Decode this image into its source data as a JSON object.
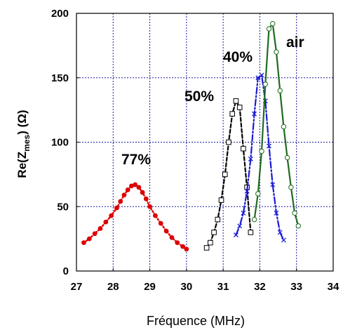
{
  "chart_data": {
    "type": "line",
    "xlabel": "Fréquence (MHz)",
    "ylabel": {
      "main": "Re(Z",
      "sub": "mes",
      "tail": ") (Ω)"
    },
    "xlim": [
      27,
      34
    ],
    "ylim": [
      0,
      200
    ],
    "xticks": [
      "27",
      "28",
      "29",
      "30",
      "31",
      "32",
      "33",
      "34"
    ],
    "yticks": [
      "0",
      "50",
      "100",
      "150",
      "200"
    ],
    "grid": true,
    "legend": "none",
    "series": [
      {
        "name": "77%",
        "color": "#dd0000",
        "line": "dotted",
        "marker": "dot",
        "x": [
          27.2,
          27.35,
          27.5,
          27.65,
          27.8,
          27.95,
          28.1,
          28.2,
          28.3,
          28.4,
          28.5,
          28.6,
          28.7,
          28.8,
          28.9,
          29.0,
          29.15,
          29.3,
          29.45,
          29.6,
          29.75,
          29.9,
          30.0
        ],
        "y": [
          22,
          25,
          29,
          33,
          38,
          43,
          49,
          54,
          59,
          63,
          66,
          67,
          65,
          61,
          56,
          50,
          43,
          37,
          31,
          26,
          22,
          19,
          17
        ]
      },
      {
        "name": "50%",
        "color": "#000000",
        "line": "dashed",
        "marker": "square",
        "x": [
          30.55,
          30.65,
          30.75,
          30.85,
          30.95,
          31.05,
          31.15,
          31.25,
          31.35,
          31.45,
          31.55,
          31.65,
          31.75
        ],
        "y": [
          18,
          22,
          30,
          40,
          55,
          75,
          100,
          122,
          132,
          127,
          95,
          65,
          30
        ]
      },
      {
        "name": "40%",
        "color": "#1a1ad6",
        "line": "dashdot",
        "marker": "cross",
        "x": [
          31.35,
          31.45,
          31.55,
          31.65,
          31.75,
          31.85,
          31.95,
          32.05,
          32.15,
          32.25,
          32.35,
          32.45,
          32.55,
          32.65
        ],
        "y": [
          28,
          35,
          45,
          62,
          87,
          122,
          150,
          152,
          132,
          97,
          67,
          45,
          30,
          24
        ]
      },
      {
        "name": "air",
        "color": "#1e6b1e",
        "line": "solid",
        "marker": "circle",
        "x": [
          31.85,
          31.95,
          32.05,
          32.15,
          32.25,
          32.35,
          32.45,
          32.55,
          32.65,
          32.75,
          32.85,
          32.95,
          33.05
        ],
        "y": [
          40,
          60,
          93,
          145,
          188,
          192,
          170,
          140,
          112,
          88,
          65,
          45,
          35
        ]
      }
    ],
    "annotations": [
      "77%",
      "50%",
      "40%",
      "air"
    ]
  }
}
